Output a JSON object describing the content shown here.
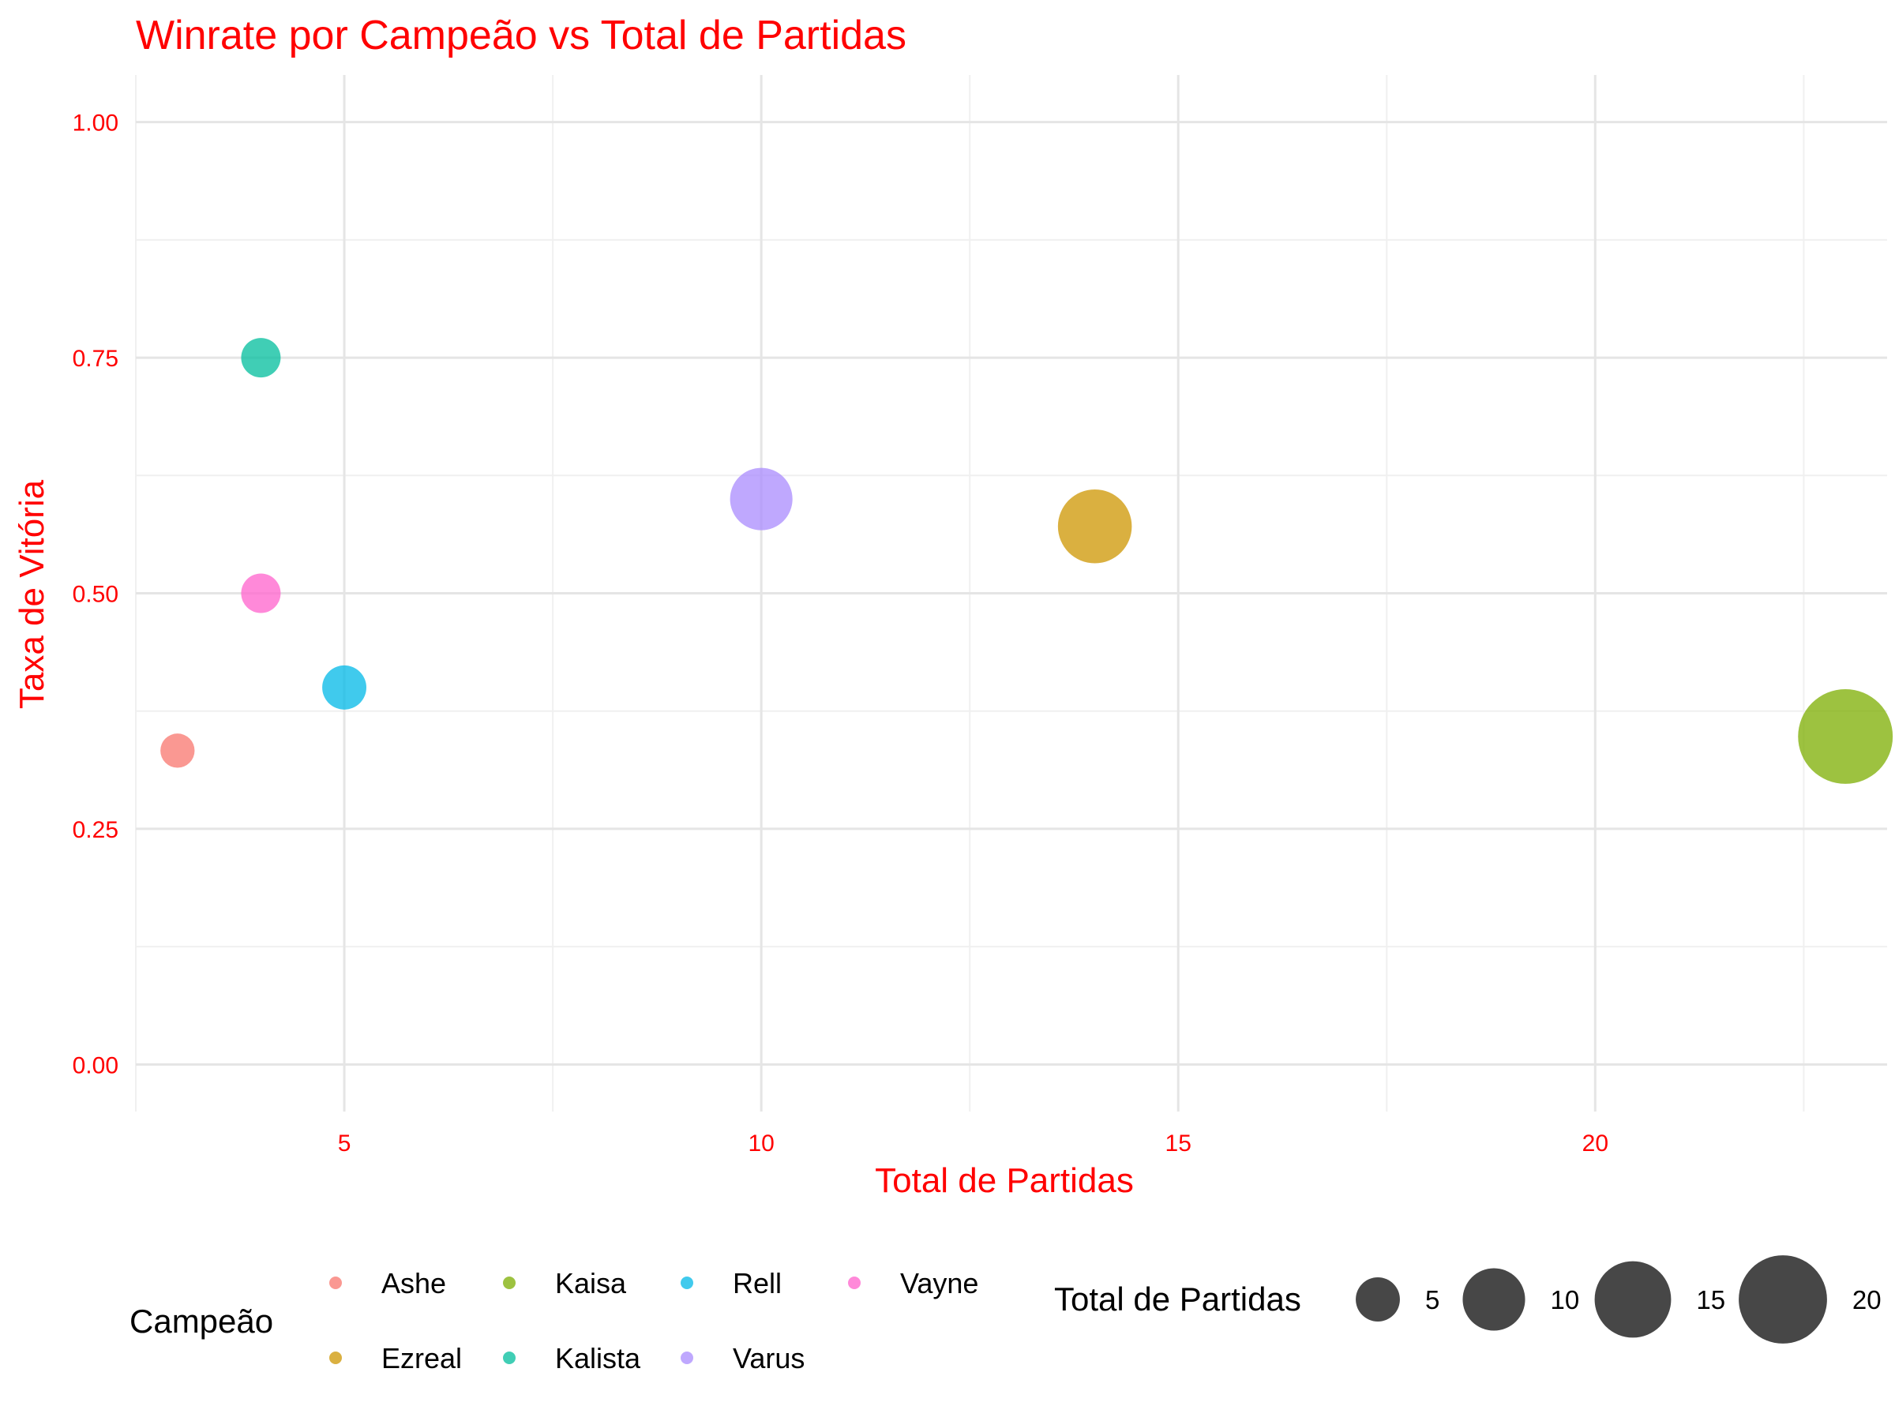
{
  "chart_data": {
    "type": "scatter",
    "title": "Winrate por Campeão vs Total de Partidas",
    "xlabel": "Total de Partidas",
    "ylabel": "Taxa de Vitória",
    "xlim": [
      2.5,
      23.5
    ],
    "ylim": [
      -0.05,
      1.05
    ],
    "x_ticks": [
      5,
      10,
      15,
      20
    ],
    "x_tick_labels": [
      "5",
      "10",
      "15",
      "20"
    ],
    "x_minor_ticks": [
      2.5,
      7.5,
      12.5,
      17.5,
      22.5
    ],
    "y_ticks": [
      0,
      0.25,
      0.5,
      0.75,
      1.0
    ],
    "y_tick_labels": [
      "0.00",
      "0.25",
      "0.50",
      "0.75",
      "1.00"
    ],
    "y_minor_ticks": [
      0.125,
      0.375,
      0.625,
      0.875
    ],
    "grid": true,
    "legend_position": "bottom",
    "points": [
      {
        "name": "Ashe",
        "x": 3,
        "y": 0.333,
        "size": 3,
        "color": "#F8766D"
      },
      {
        "name": "Vayne",
        "x": 4,
        "y": 0.5,
        "size": 4,
        "color": "#FF61CC"
      },
      {
        "name": "Kalista",
        "x": 4,
        "y": 0.75,
        "size": 4,
        "color": "#00BE9C"
      },
      {
        "name": "Rell",
        "x": 5,
        "y": 0.4,
        "size": 5,
        "color": "#00B8E7"
      },
      {
        "name": "Varus",
        "x": 10,
        "y": 0.6,
        "size": 10,
        "color": "#A98BFE"
      },
      {
        "name": "Ezreal",
        "x": 14,
        "y": 0.571,
        "size": 14,
        "color": "#CD9600"
      },
      {
        "name": "Kaisa",
        "x": 23,
        "y": 0.348,
        "size": 23,
        "color": "#7CAE00"
      }
    ],
    "color_legend": {
      "title": "Campeão",
      "items": [
        {
          "label": "Ashe",
          "color": "#F8766D"
        },
        {
          "label": "Kaisa",
          "color": "#7CAE00"
        },
        {
          "label": "Rell",
          "color": "#00B8E7"
        },
        {
          "label": "Vayne",
          "color": "#FF61CC"
        },
        {
          "label": "Ezreal",
          "color": "#CD9600"
        },
        {
          "label": "Kalista",
          "color": "#00BE9C"
        },
        {
          "label": "Varus",
          "color": "#A98BFE"
        }
      ]
    },
    "size_legend": {
      "title": "Total de Partidas",
      "items": [
        {
          "label": "5",
          "value": 5
        },
        {
          "label": "10",
          "value": 10
        },
        {
          "label": "15",
          "value": 15
        },
        {
          "label": "20",
          "value": 20
        }
      ]
    }
  }
}
